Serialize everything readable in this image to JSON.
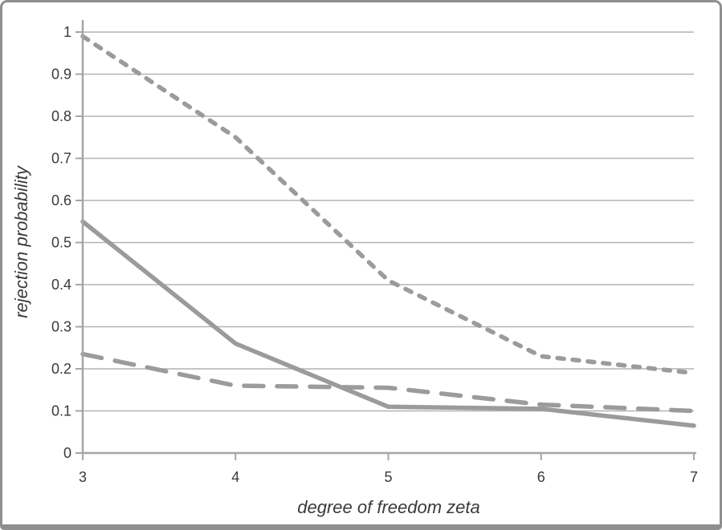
{
  "colors": {
    "line": "#9b9b9b",
    "gridline": "#b3b3b3",
    "axis": "#a6a6a6",
    "text": "#3a3a3a",
    "frame_border": "#8f8f8f",
    "background": "#ffffff"
  },
  "chart_data": {
    "type": "line",
    "title": "",
    "xlabel": "degree of freedom zeta",
    "ylabel": "rejection probability",
    "x": [
      3,
      4,
      5,
      6,
      7
    ],
    "x_tick_labels": [
      "3",
      "4",
      "5",
      "6",
      "7"
    ],
    "y_ticks": [
      0,
      0.1,
      0.2,
      0.3,
      0.4,
      0.5,
      0.6,
      0.7,
      0.8,
      0.9,
      1
    ],
    "y_tick_labels": [
      "0",
      "0.1",
      "0.2",
      "0.3",
      "0.4",
      "0.5",
      "0.6",
      "0.7",
      "0.8",
      "0.9",
      "1"
    ],
    "xlim": [
      3,
      7
    ],
    "ylim": [
      0,
      1
    ],
    "grid": "horizontal",
    "legend": "none",
    "series": [
      {
        "name": "short-dash-line",
        "style": "short-dash",
        "color": "#9b9b9b",
        "values": [
          0.99,
          0.75,
          0.41,
          0.23,
          0.19
        ]
      },
      {
        "name": "solid-line",
        "style": "solid",
        "color": "#9b9b9b",
        "values": [
          0.55,
          0.26,
          0.11,
          0.105,
          0.065
        ]
      },
      {
        "name": "long-dash-line",
        "style": "long-dash",
        "color": "#9b9b9b",
        "values": [
          0.235,
          0.16,
          0.155,
          0.115,
          0.1
        ]
      }
    ]
  }
}
